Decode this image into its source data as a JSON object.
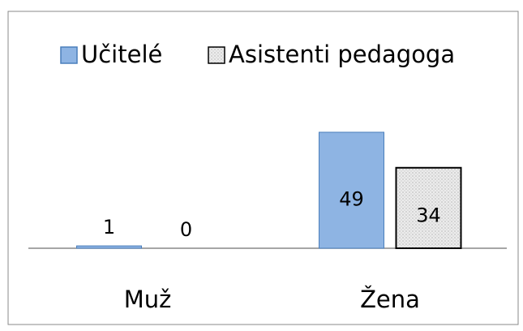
{
  "chart_data": {
    "type": "bar",
    "categories": [
      "Muž",
      "Žena"
    ],
    "series": [
      {
        "name": "Učitelé",
        "color": "#8eb4e3",
        "values": [
          1,
          49
        ]
      },
      {
        "name": "Asistenti pedagoga",
        "color": "#e6e6e6",
        "values": [
          0,
          34
        ]
      }
    ],
    "legend": "top"
  }
}
